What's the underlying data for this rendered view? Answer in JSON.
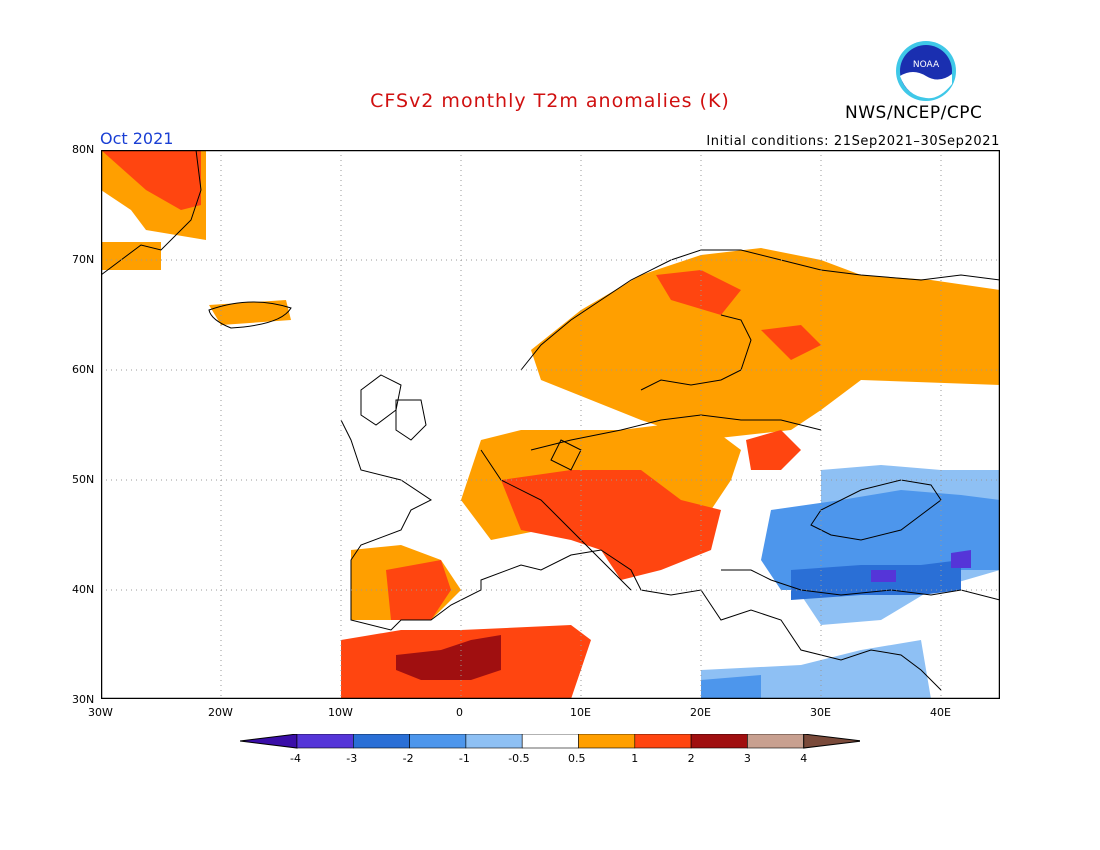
{
  "header": {
    "title": "CFSv2 monthly T2m anomalies (K)",
    "agency": "NWS/NCEP/CPC",
    "logo_text": "NOAA",
    "month": "Oct 2021",
    "initial_conditions": "Initial conditions: 21Sep2021–30Sep2021"
  },
  "axes": {
    "lat_labels": [
      "80N",
      "70N",
      "60N",
      "50N",
      "40N",
      "30N"
    ],
    "lon_labels": [
      "30W",
      "20W",
      "10W",
      "0",
      "10E",
      "20E",
      "30E",
      "40E"
    ]
  },
  "legend": {
    "labels": [
      "-4",
      "-3",
      "-2",
      "-1",
      "-0.5",
      "0.5",
      "1",
      "2",
      "3",
      "4"
    ],
    "colors": [
      "#3a0ea8",
      "#5535d8",
      "#2a6fd6",
      "#4d96ec",
      "#8ec0f4",
      "#ffffff",
      "#ff9f00",
      "#ff4510",
      "#a00f10",
      "#c8a090",
      "#7a4a3a"
    ]
  },
  "chart_data": {
    "type": "heatmap",
    "title": "CFSv2 monthly T2m anomalies (K)",
    "region": {
      "lon": [
        -30,
        45
      ],
      "lat": [
        30,
        80
      ]
    },
    "bins": [
      -4,
      -3,
      -2,
      -1,
      -0.5,
      0.5,
      1,
      2,
      3,
      4
    ],
    "regions": [
      {
        "area": "Greenland east coast",
        "category": "0.5 to 1"
      },
      {
        "area": "Iceland",
        "category": "0.5 to 1"
      },
      {
        "area": "Scandinavia and Finland",
        "category": "0.5 to 1"
      },
      {
        "area": "Northwest Russia",
        "category": "0.5 to 1"
      },
      {
        "area": "France, Germany, Poland",
        "category": "0.5 to 1"
      },
      {
        "area": "Alps, Italy, Balkans west",
        "category": "1 to 2"
      },
      {
        "area": "Iberia south",
        "category": "1 to 2"
      },
      {
        "area": "Morocco and Algeria",
        "category": "1 to 2"
      },
      {
        "area": "Atlas / Sahara north",
        "category": "2 to 3"
      },
      {
        "area": "Ukraine, Black Sea coast",
        "category": "-1 to -0.5"
      },
      {
        "area": "Turkey",
        "category": "-2 to -1"
      },
      {
        "area": "Caucasus",
        "category": "-3 to -2"
      },
      {
        "area": "Eastern Mediterranean coast",
        "category": "-1 to -0.5"
      },
      {
        "area": "Libya / Egypt north",
        "category": "-1 to -0.5"
      }
    ]
  }
}
